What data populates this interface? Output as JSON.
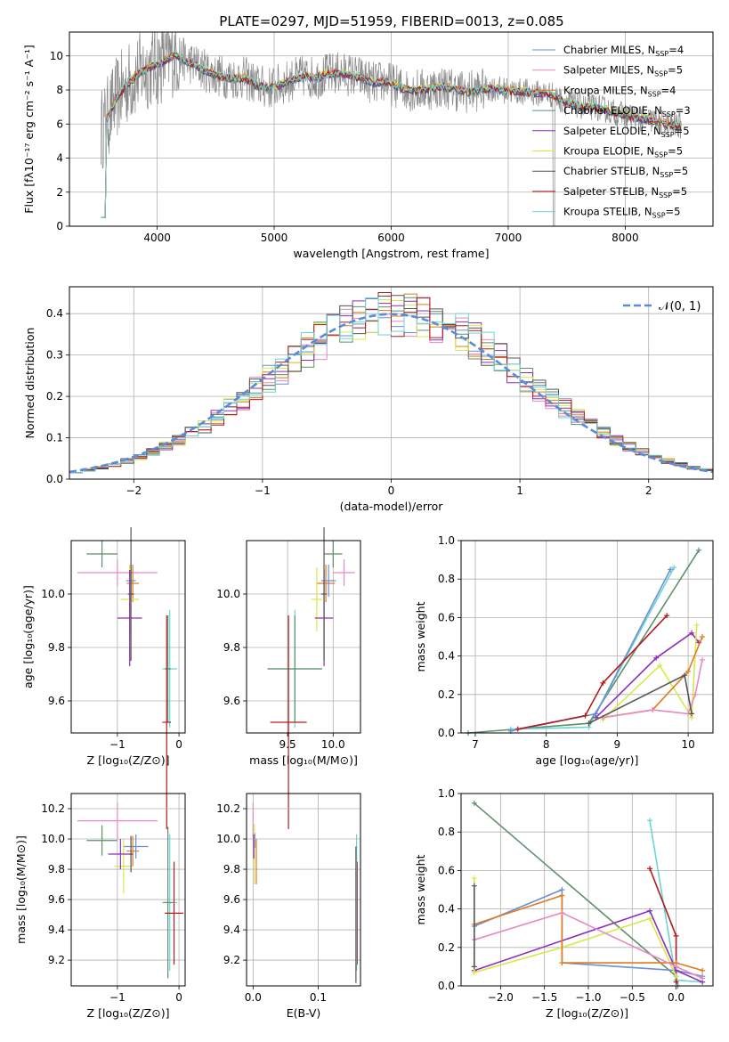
{
  "figure_title": "PLATE=0297, MJD=51959, FIBERID=0013, z=0.085",
  "models": [
    {
      "name": "Chabrier MILES",
      "color": "#6a8fd6",
      "n": "4"
    },
    {
      "name": "Salpeter MILES",
      "color": "#e78ac3",
      "n": "5"
    },
    {
      "name": "Kroupa MILES",
      "color": "#e07b1f",
      "n": "4"
    },
    {
      "name": "Chabrier ELODIE",
      "color": "#5e8f6a",
      "n": "3"
    },
    {
      "name": "Salpeter ELODIE",
      "color": "#8e2fb8",
      "n": "5"
    },
    {
      "name": "Kroupa ELODIE",
      "color": "#d8e84c",
      "n": "5"
    },
    {
      "name": "Chabrier STELIB",
      "color": "#555555",
      "n": "5"
    },
    {
      "name": "Salpeter STELIB",
      "color": "#b01c1c",
      "n": "5"
    },
    {
      "name": "Kroupa STELIB",
      "color": "#6dd4d4",
      "n": "5"
    }
  ],
  "chart_data": [
    {
      "id": "spectrum",
      "type": "line",
      "xlabel": "wavelength [Angstrom, rest frame]",
      "ylabel": "Flux [fλ10⁻¹⁷ erg cm⁻² s⁻¹ A⁻¹]",
      "xlim": [
        3250,
        8750
      ],
      "ylim": [
        0,
        11.4
      ],
      "xticks": [
        "4000",
        "5000",
        "6000",
        "7000",
        "8000"
      ],
      "yticks": [
        "0",
        "2",
        "4",
        "6",
        "8",
        "10"
      ],
      "legend": "top-right",
      "x": [
        3550,
        3650,
        3750,
        3850,
        3950,
        4050,
        4150,
        4250,
        4350,
        4450,
        4550,
        4650,
        4750,
        4850,
        4950,
        5050,
        5150,
        5250,
        5350,
        5450,
        5550,
        5650,
        5750,
        5850,
        5950,
        6050,
        6150,
        6250,
        6350,
        6450,
        6550,
        6650,
        6750,
        6850,
        6950,
        7050,
        7150,
        7250,
        7350,
        7450,
        7550,
        7650,
        7750,
        7850,
        7950,
        8050,
        8150,
        8250,
        8350,
        8450
      ],
      "model_flux": [
        6.0,
        7.5,
        8.4,
        9.0,
        9.4,
        9.6,
        10.1,
        9.7,
        9.4,
        9.0,
        8.8,
        8.7,
        8.7,
        8.3,
        8.1,
        8.3,
        8.6,
        8.8,
        8.7,
        8.9,
        9.0,
        8.9,
        8.7,
        8.4,
        8.5,
        8.2,
        8.0,
        8.0,
        8.1,
        8.2,
        8.0,
        7.9,
        8.0,
        8.1,
        8.0,
        7.9,
        7.9,
        7.8,
        7.8,
        7.4,
        7.2,
        7.0,
        7.0,
        6.8,
        6.6,
        6.4,
        6.3,
        6.2,
        6.0,
        5.9
      ]
    },
    {
      "id": "residuals",
      "type": "line",
      "xlabel": "(data-model)/error",
      "ylabel": "Normed distribution",
      "xlim": [
        -2.5,
        2.5
      ],
      "ylim": [
        0,
        0.465
      ],
      "xticks": [
        "−2",
        "−1",
        "0",
        "1",
        "2"
      ],
      "yticks": [
        "0.0",
        "0.1",
        "0.2",
        "0.3",
        "0.4"
      ],
      "legend": "top-right",
      "reference": "N(0,1)",
      "reference_label": "𝒩(0, 1)"
    },
    {
      "id": "age-vs-z",
      "type": "scatter",
      "xlabel": "Z [log₁₀(Z/Z⊙)]",
      "ylabel": "age  [log₁₀(age/yr)]",
      "xlim": [
        -1.75,
        0.1
      ],
      "ylim": [
        9.48,
        10.2
      ],
      "xticks": [
        "−1",
        "0"
      ],
      "yticks": [
        "9.6",
        "9.8",
        "10.0"
      ],
      "points": [
        {
          "x": -1.0,
          "y": 10.08,
          "dx": 0.65,
          "dy": 0.05,
          "color": "#e78ac3"
        },
        {
          "x": -1.25,
          "y": 10.15,
          "dx": 0.25,
          "dy": 0.05,
          "color": "#5e8f6a"
        },
        {
          "x": -0.75,
          "y": 10.04,
          "dx": 0.1,
          "dy": 0.07,
          "color": "#e07b1f"
        },
        {
          "x": -0.78,
          "y": 10.05,
          "dx": 0.08,
          "dy": 0.06,
          "color": "#6a8fd6"
        },
        {
          "x": -0.8,
          "y": 9.98,
          "dx": 0.15,
          "dy": 0.13,
          "color": "#d8e84c"
        },
        {
          "x": -0.8,
          "y": 9.91,
          "dx": 0.2,
          "dy": 0.18,
          "color": "#8e2fb8"
        },
        {
          "x": -0.78,
          "y": 10.0,
          "dx": 0.05,
          "dy": 0.25,
          "color": "#555555"
        },
        {
          "x": -0.15,
          "y": 9.72,
          "dx": 0.12,
          "dy": 0.22,
          "color": "#6dd4d4"
        },
        {
          "x": -0.18,
          "y": 9.72,
          "dx": 0.05,
          "dy": 0.2,
          "color": "#5e8f6a"
        },
        {
          "x": -0.2,
          "y": 9.52,
          "dx": 0.07,
          "dy": 0.4,
          "color": "#b01c1c"
        }
      ]
    },
    {
      "id": "age-vs-mass",
      "type": "scatter",
      "xlabel": "mass [log₁₀(M/M⊙)]",
      "xlim": [
        9.05,
        10.3
      ],
      "ylim": [
        9.48,
        10.2
      ],
      "xticks": [
        "9.5",
        "10.0"
      ],
      "yticks": [
        "9.6",
        "9.8",
        "10.0"
      ],
      "points": [
        {
          "x": 10.12,
          "y": 10.08,
          "dx": 0.12,
          "dy": 0.05,
          "color": "#e78ac3"
        },
        {
          "x": 10.0,
          "y": 10.15,
          "dx": 0.1,
          "dy": 0.05,
          "color": "#5e8f6a"
        },
        {
          "x": 9.92,
          "y": 10.04,
          "dx": 0.1,
          "dy": 0.07,
          "color": "#e07b1f"
        },
        {
          "x": 9.95,
          "y": 10.05,
          "dx": 0.08,
          "dy": 0.06,
          "color": "#6a8fd6"
        },
        {
          "x": 9.82,
          "y": 9.98,
          "dx": 0.06,
          "dy": 0.12,
          "color": "#d8e84c"
        },
        {
          "x": 9.9,
          "y": 9.91,
          "dx": 0.1,
          "dy": 0.18,
          "color": "#8e2fb8"
        },
        {
          "x": 9.9,
          "y": 10.0,
          "dx": 0.03,
          "dy": 0.25,
          "color": "#555555"
        },
        {
          "x": 9.58,
          "y": 9.72,
          "dx": 0.3,
          "dy": 0.22,
          "color": "#6dd4d4"
        },
        {
          "x": 9.58,
          "y": 9.72,
          "dx": 0.3,
          "dy": 0.2,
          "color": "#5e8f6a"
        },
        {
          "x": 9.51,
          "y": 9.52,
          "dx": 0.2,
          "dy": 0.4,
          "color": "#b01c1c"
        }
      ]
    },
    {
      "id": "mass-weight-vs-age",
      "type": "line",
      "xlabel": "age  [log₁₀(age/yr)]",
      "ylabel": "mass weight",
      "xlim": [
        6.8,
        10.35
      ],
      "ylim": [
        0,
        1
      ],
      "xticks": [
        "7",
        "8",
        "9",
        "10"
      ],
      "yticks": [
        "0.0",
        "0.2",
        "0.4",
        "0.6",
        "0.8",
        "1.0"
      ],
      "series": [
        {
          "color": "#5e8f6a",
          "x": [
            6.9,
            8.6,
            10.15
          ],
          "y": [
            0.0,
            0.05,
            0.95
          ]
        },
        {
          "color": "#6dd4d4",
          "x": [
            7.5,
            8.6,
            9.8
          ],
          "y": [
            0.02,
            0.03,
            0.86
          ]
        },
        {
          "color": "#6a8fd6",
          "x": [
            7.5,
            8.7,
            9.75
          ],
          "y": [
            0.01,
            0.1,
            0.85
          ]
        },
        {
          "color": "#b01c1c",
          "x": [
            7.6,
            8.55,
            8.8,
            9.7
          ],
          "y": [
            0.02,
            0.09,
            0.26,
            0.61
          ]
        },
        {
          "color": "#8e2fb8",
          "x": [
            8.7,
            9.55,
            10.05,
            10.15
          ],
          "y": [
            0.08,
            0.39,
            0.52,
            0.47
          ]
        },
        {
          "color": "#d8e84c",
          "x": [
            8.8,
            9.6,
            10.05,
            10.12
          ],
          "y": [
            0.07,
            0.35,
            0.08,
            0.56
          ]
        },
        {
          "color": "#e07b1f",
          "x": [
            8.8,
            9.5,
            10.0,
            10.2
          ],
          "y": [
            0.08,
            0.12,
            0.32,
            0.5
          ]
        },
        {
          "color": "#e78ac3",
          "x": [
            8.8,
            9.5,
            10.0,
            10.1,
            10.2
          ],
          "y": [
            0.08,
            0.12,
            0.1,
            0.2,
            0.38
          ]
        },
        {
          "color": "#555555",
          "x": [
            8.6,
            9.95,
            10.05
          ],
          "y": [
            0.05,
            0.3,
            0.1
          ]
        }
      ]
    },
    {
      "id": "mass-vs-z",
      "type": "scatter",
      "xlabel": "Z [log₁₀(Z/Z⊙)]",
      "ylabel": "mass [log₁₀(M/M⊙)]",
      "xlim": [
        -1.75,
        0.1
      ],
      "ylim": [
        9.03,
        10.3
      ],
      "xticks": [
        "−1",
        "0"
      ],
      "yticks": [
        "9.2",
        "9.4",
        "9.6",
        "9.8",
        "10.0",
        "10.2"
      ],
      "points": [
        {
          "x": -1.0,
          "y": 10.12,
          "dx": 0.65,
          "dy": 0.12,
          "color": "#e78ac3"
        },
        {
          "x": -1.25,
          "y": 9.99,
          "dx": 0.25,
          "dy": 0.1,
          "color": "#5e8f6a"
        },
        {
          "x": -0.75,
          "y": 9.92,
          "dx": 0.1,
          "dy": 0.1,
          "color": "#e07b1f"
        },
        {
          "x": -0.7,
          "y": 9.95,
          "dx": 0.2,
          "dy": 0.08,
          "color": "#6a8fd6"
        },
        {
          "x": -0.9,
          "y": 9.82,
          "dx": 0.15,
          "dy": 0.18,
          "color": "#d8e84c"
        },
        {
          "x": -0.95,
          "y": 9.9,
          "dx": 0.2,
          "dy": 0.1,
          "color": "#8e2fb8"
        },
        {
          "x": -0.78,
          "y": 9.9,
          "dx": 0.03,
          "dy": 0.12,
          "color": "#555555"
        },
        {
          "x": -0.15,
          "y": 9.58,
          "dx": 0.12,
          "dy": 0.45,
          "color": "#6dd4d4"
        },
        {
          "x": -0.18,
          "y": 9.58,
          "dx": 0.08,
          "dy": 0.5,
          "color": "#5e8f6a"
        },
        {
          "x": -0.08,
          "y": 9.51,
          "dx": 0.15,
          "dy": 0.34,
          "color": "#b01c1c"
        }
      ]
    },
    {
      "id": "mass-vs-ebv",
      "type": "scatter",
      "xlabel": "E(B-V)",
      "xlim": [
        -0.01,
        0.165
      ],
      "ylim": [
        9.03,
        10.3
      ],
      "xticks": [
        "0.0",
        "0.1"
      ],
      "yticks": [
        "9.2",
        "9.4",
        "9.6",
        "9.8",
        "10.0",
        "10.2"
      ],
      "points": [
        {
          "x": 0.0,
          "y": 10.12,
          "dx": 0.0,
          "dy": 0.12,
          "color": "#e78ac3"
        },
        {
          "x": 0.003,
          "y": 9.99,
          "dx": 0.0,
          "dy": 0.05,
          "color": "#6a8fd6"
        },
        {
          "x": 0.002,
          "y": 9.9,
          "dx": 0.0,
          "dy": 0.2,
          "color": "#d8e84c"
        },
        {
          "x": 0.005,
          "y": 9.85,
          "dx": 0.0,
          "dy": 0.15,
          "color": "#e07b1f"
        },
        {
          "x": 0.001,
          "y": 9.95,
          "dx": 0.0,
          "dy": 0.08,
          "color": "#8e2fb8"
        },
        {
          "x": 0.16,
          "y": 9.51,
          "dx": 0.0,
          "dy": 0.34,
          "color": "#b01c1c"
        },
        {
          "x": 0.159,
          "y": 9.58,
          "dx": 0.0,
          "dy": 0.45,
          "color": "#6dd4d4"
        },
        {
          "x": 0.158,
          "y": 9.5,
          "dx": 0.0,
          "dy": 0.45,
          "color": "#555555"
        }
      ]
    },
    {
      "id": "mass-weight-vs-z",
      "type": "line",
      "xlabel": "Z [log₁₀(Z/Z⊙)]",
      "ylabel": "mass weight",
      "xlim": [
        -2.45,
        0.42
      ],
      "ylim": [
        0,
        1
      ],
      "xticks": [
        "−2.0",
        "−1.5",
        "−1.0",
        "−0.5",
        "0.0"
      ],
      "yticks": [
        "0.0",
        "0.2",
        "0.4",
        "0.6",
        "0.8",
        "1.0"
      ],
      "series": [
        {
          "color": "#5e8f6a",
          "x": [
            -2.3,
            0.0,
            0.02
          ],
          "y": [
            0.95,
            0.05,
            0.0
          ]
        },
        {
          "color": "#6dd4d4",
          "x": [
            -0.3,
            0.0,
            0.3
          ],
          "y": [
            0.86,
            0.03,
            0.02
          ]
        },
        {
          "color": "#6a8fd6",
          "x": [
            -2.3,
            -1.3,
            -1.3,
            0.0,
            0.3
          ],
          "y": [
            0.31,
            0.5,
            0.12,
            0.08,
            0.05
          ]
        },
        {
          "color": "#b01c1c",
          "x": [
            -0.3,
            0.0,
            0.0
          ],
          "y": [
            0.61,
            0.26,
            0.02
          ]
        },
        {
          "color": "#8e2fb8",
          "x": [
            -2.3,
            -0.3,
            0.0,
            0.3
          ],
          "y": [
            0.08,
            0.39,
            0.08,
            0.02
          ]
        },
        {
          "color": "#d8e84c",
          "x": [
            -2.3,
            -2.3,
            -1.3,
            -0.3,
            0.0
          ],
          "y": [
            0.56,
            0.07,
            0.2,
            0.35,
            0.05
          ]
        },
        {
          "color": "#e07b1f",
          "x": [
            -2.3,
            -1.3,
            -1.3,
            0.0,
            0.3
          ],
          "y": [
            0.32,
            0.47,
            0.12,
            0.12,
            0.08
          ]
        },
        {
          "color": "#e78ac3",
          "x": [
            -2.3,
            -1.3,
            0.0,
            0.3
          ],
          "y": [
            0.24,
            0.38,
            0.1,
            0.04
          ]
        },
        {
          "color": "#555555",
          "x": [
            -2.3,
            -2.3
          ],
          "y": [
            0.52,
            0.1
          ]
        }
      ]
    }
  ]
}
